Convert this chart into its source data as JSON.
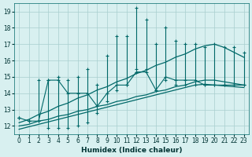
{
  "xlabel": "Humidex (Indice chaleur)",
  "x": [
    0,
    1,
    2,
    3,
    4,
    5,
    6,
    7,
    8,
    9,
    10,
    11,
    12,
    13,
    14,
    15,
    16,
    17,
    18,
    19,
    20,
    21,
    22,
    23
  ],
  "ylim": [
    11.5,
    19.5
  ],
  "xlim": [
    -0.5,
    23.5
  ],
  "yticks": [
    12,
    13,
    14,
    15,
    16,
    17,
    18,
    19
  ],
  "xticks": [
    0,
    1,
    2,
    3,
    4,
    5,
    6,
    7,
    8,
    9,
    10,
    11,
    12,
    13,
    14,
    15,
    16,
    17,
    18,
    19,
    20,
    21,
    22,
    23
  ],
  "bg_color": "#d8f0f0",
  "grid_color": "#a8cece",
  "line_color": "#006868",
  "y_min": [
    12.5,
    12.3,
    12.3,
    11.9,
    11.9,
    11.9,
    12.0,
    12.2,
    12.8,
    13.5,
    14.2,
    14.5,
    15.5,
    15.5,
    14.2,
    14.8,
    14.5,
    14.5,
    14.5,
    14.5,
    14.5,
    14.5,
    14.5,
    14.5
  ],
  "y_max": [
    12.5,
    12.3,
    14.8,
    14.8,
    15.0,
    14.8,
    15.0,
    15.5,
    14.5,
    16.3,
    17.5,
    17.5,
    19.2,
    18.5,
    17.0,
    18.0,
    17.2,
    17.0,
    17.0,
    16.8,
    17.0,
    16.8,
    16.8,
    16.5
  ],
  "y_mid": [
    12.5,
    12.3,
    12.3,
    14.8,
    14.8,
    14.0,
    14.0,
    14.0,
    13.2,
    14.0,
    14.5,
    14.5,
    15.3,
    15.3,
    14.2,
    15.0,
    14.8,
    14.8,
    14.8,
    14.5,
    14.5,
    14.5,
    14.5,
    14.5
  ],
  "trend_max": [
    12.2,
    12.4,
    12.7,
    12.9,
    13.2,
    13.4,
    13.7,
    13.9,
    14.2,
    14.4,
    14.7,
    14.9,
    15.2,
    15.4,
    15.7,
    15.9,
    16.2,
    16.4,
    16.7,
    16.9,
    17.0,
    16.8,
    16.5,
    16.2
  ],
  "trend_min": [
    12.0,
    12.1,
    12.3,
    12.4,
    12.6,
    12.7,
    12.9,
    13.0,
    13.2,
    13.3,
    13.5,
    13.6,
    13.8,
    13.9,
    14.1,
    14.2,
    14.4,
    14.5,
    14.7,
    14.8,
    14.8,
    14.7,
    14.6,
    14.5
  ],
  "trend_bot": [
    11.8,
    11.95,
    12.1,
    12.25,
    12.4,
    12.55,
    12.7,
    12.85,
    13.0,
    13.15,
    13.3,
    13.45,
    13.6,
    13.75,
    13.9,
    14.05,
    14.2,
    14.35,
    14.5,
    14.55,
    14.5,
    14.45,
    14.4,
    14.35
  ]
}
